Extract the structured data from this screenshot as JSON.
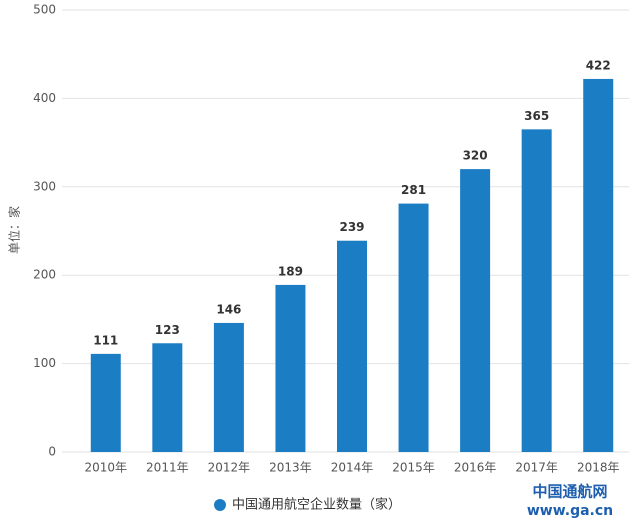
{
  "chart_data": {
    "type": "bar",
    "y_label": "单位：家",
    "categories": [
      "2010年",
      "2011年",
      "2012年",
      "2013年",
      "2014年",
      "2015年",
      "2016年",
      "2017年",
      "2018年"
    ],
    "series": [
      {
        "name": "中国通用航空企业数量（家）",
        "color": "#1b7dc4",
        "values": [
          111,
          123,
          146,
          189,
          239,
          281,
          320,
          365,
          422
        ]
      }
    ],
    "ylim": [
      0,
      500
    ],
    "yticks": [
      0,
      100,
      200,
      300,
      400,
      500
    ],
    "grid": true,
    "legend": "bottom",
    "source_logo": "中国通航网",
    "source_url": "www.ga.cn"
  }
}
